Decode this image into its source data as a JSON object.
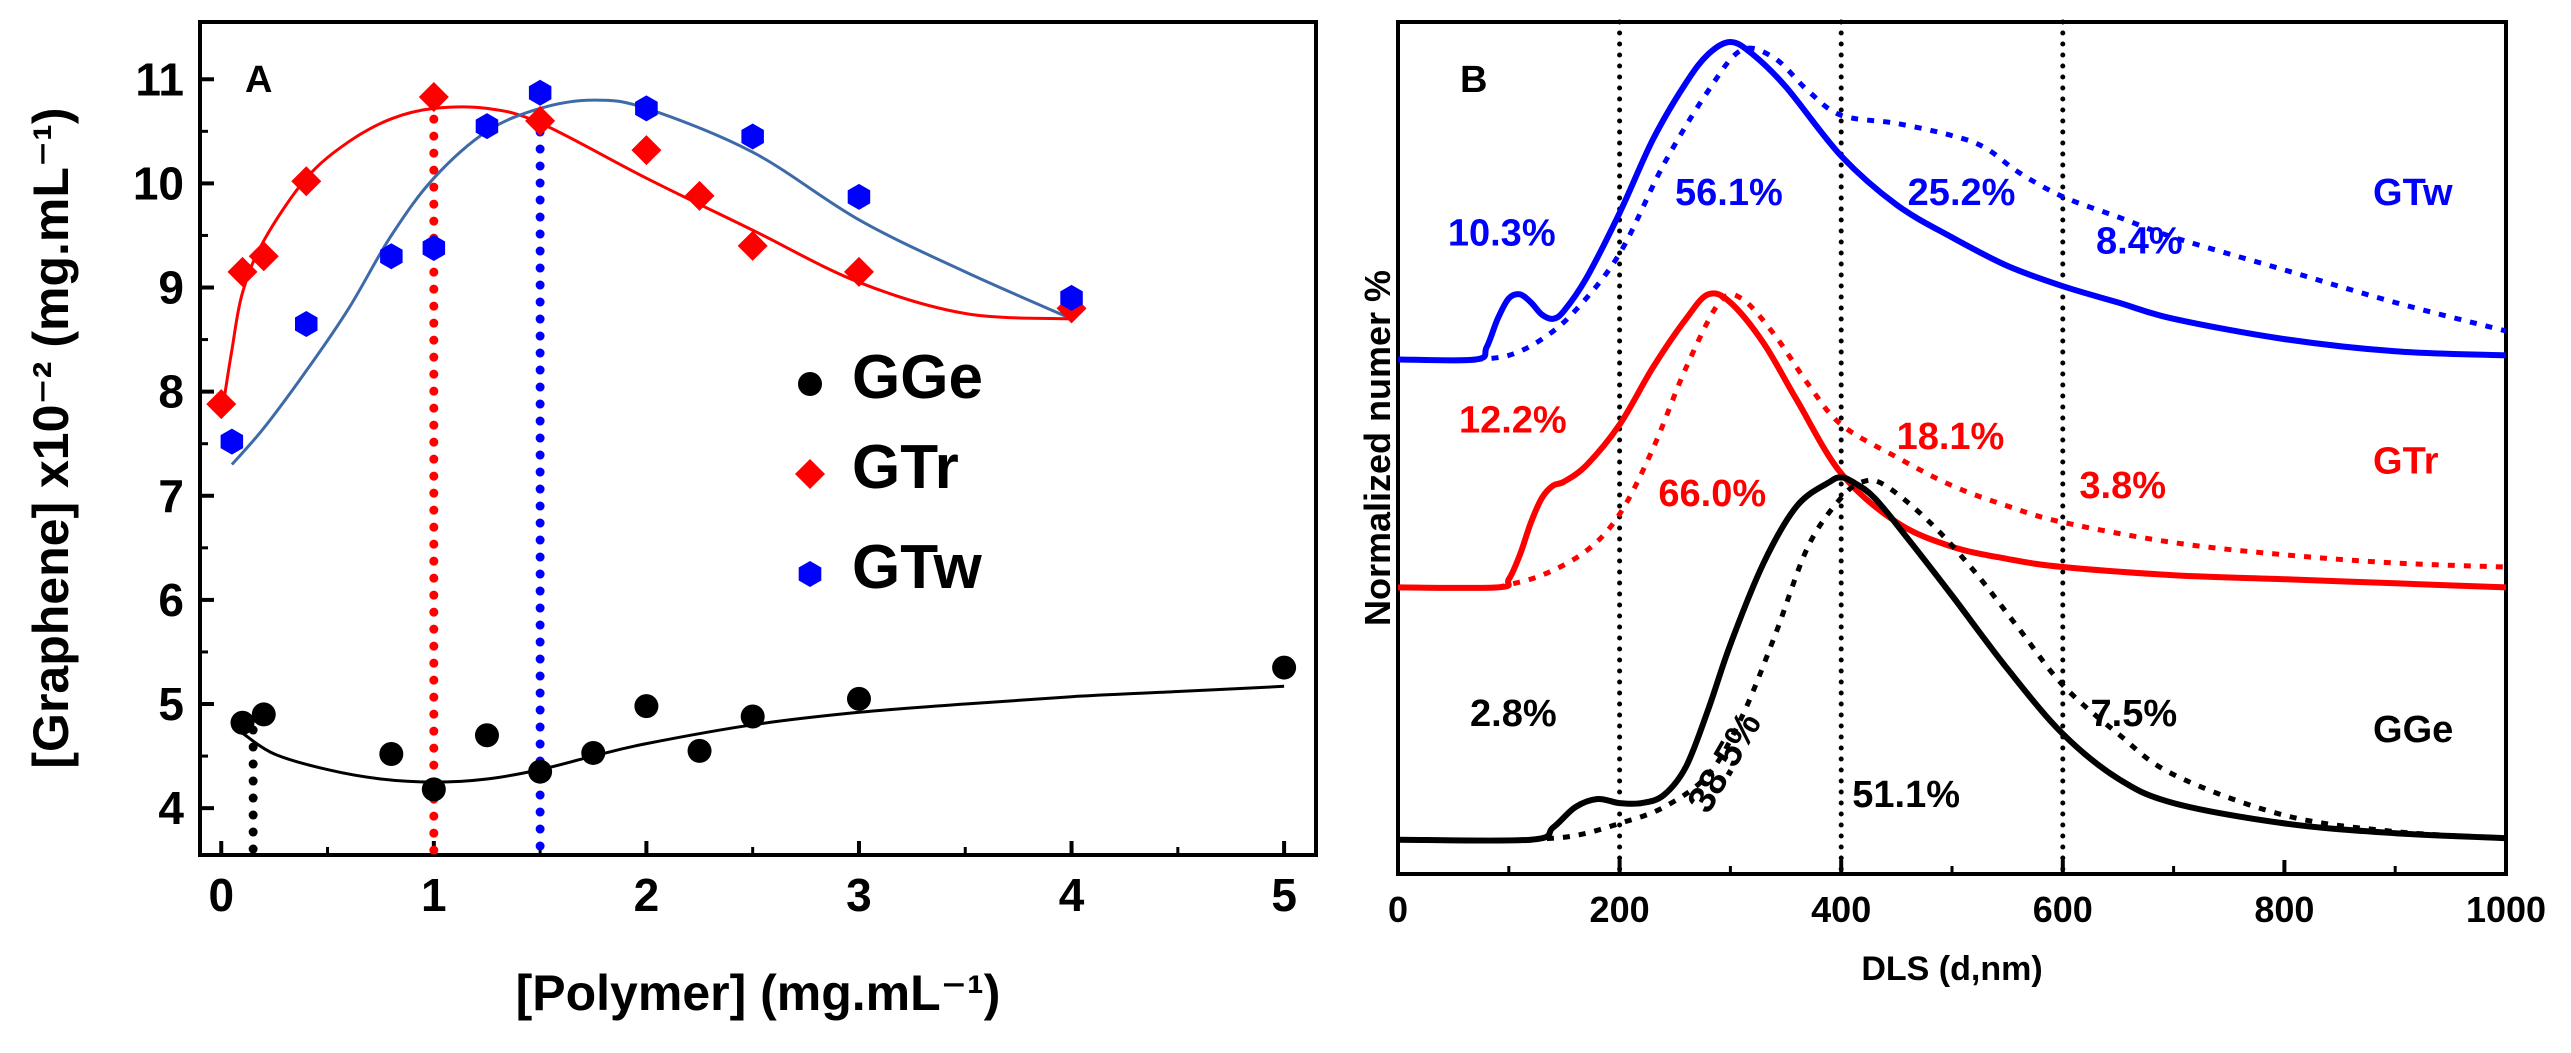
{
  "chart_data": [
    {
      "panel": "A",
      "type": "scatter",
      "xlabel": "[Polymer] (mg.mL⁻¹)",
      "ylabel": "[Graphene] x10⁻² (mg.mL⁻¹)",
      "xlim": [
        -0.1,
        5.15
      ],
      "ylim": [
        3.55,
        11.55
      ],
      "xticks": [
        "0",
        "1",
        "2",
        "3",
        "4",
        "5"
      ],
      "yticks": [
        "4",
        "5",
        "6",
        "7",
        "8",
        "9",
        "10",
        "11"
      ],
      "legend": [
        "GGe",
        "GTr",
        "GTw"
      ],
      "legend_position": "center-right",
      "series": [
        {
          "name": "GGe",
          "color": "#000000",
          "marker": "circle",
          "x": [
            0.1,
            0.2,
            0.8,
            1.0,
            1.25,
            1.5,
            1.75,
            2.0,
            2.25,
            2.5,
            3.0,
            5.0
          ],
          "y": [
            4.82,
            4.9,
            4.52,
            4.18,
            4.7,
            4.35,
            4.53,
            4.98,
            4.55,
            4.88,
            5.05,
            5.35
          ],
          "fit_x": [
            0.1,
            0.25,
            0.5,
            0.75,
            1.0,
            1.25,
            1.5,
            1.75,
            2.0,
            2.5,
            3.0,
            3.5,
            4.0,
            4.5,
            5.0
          ],
          "fit_y": [
            4.72,
            4.52,
            4.37,
            4.28,
            4.25,
            4.28,
            4.37,
            4.5,
            4.62,
            4.8,
            4.92,
            5.0,
            5.07,
            5.12,
            5.17
          ],
          "drop_x": 0.15,
          "drop_y_top": 4.75
        },
        {
          "name": "GTr",
          "color": "#ff0000",
          "marker": "diamond",
          "x": [
            0.0,
            0.1,
            0.2,
            0.4,
            1.0,
            1.5,
            2.0,
            2.25,
            2.5,
            3.0,
            4.0
          ],
          "y": [
            7.88,
            9.15,
            9.3,
            10.02,
            10.83,
            10.6,
            10.32,
            9.88,
            9.4,
            9.15,
            8.8
          ],
          "fit_x": [
            0.0,
            0.05,
            0.1,
            0.2,
            0.4,
            0.6,
            0.8,
            1.0,
            1.25,
            1.5,
            2.0,
            2.5,
            3.0,
            3.5,
            4.0
          ],
          "fit_y": [
            7.75,
            8.4,
            8.95,
            9.45,
            10.05,
            10.4,
            10.62,
            10.72,
            10.72,
            10.58,
            10.05,
            9.55,
            9.05,
            8.75,
            8.7
          ],
          "drop_x": 1.0,
          "drop_y_top": 10.78
        },
        {
          "name": "GTw",
          "color": "#0000ff",
          "marker": "hexagon",
          "x": [
            0.05,
            0.4,
            0.8,
            1.0,
            1.25,
            1.5,
            2.0,
            2.5,
            3.0,
            4.0
          ],
          "y": [
            7.52,
            8.65,
            9.3,
            9.38,
            10.55,
            10.87,
            10.72,
            10.45,
            9.87,
            8.9
          ],
          "fit_x": [
            0.05,
            0.2,
            0.4,
            0.6,
            0.8,
            1.0,
            1.25,
            1.5,
            1.75,
            2.0,
            2.5,
            3.0,
            3.5,
            4.0
          ],
          "fit_y": [
            7.3,
            7.65,
            8.2,
            8.8,
            9.5,
            10.05,
            10.5,
            10.72,
            10.8,
            10.72,
            10.3,
            9.65,
            9.15,
            8.7
          ],
          "drop_x": 1.5,
          "drop_y_top": 10.82
        }
      ]
    },
    {
      "panel": "B",
      "type": "line",
      "xlabel": "DLS (d,nm)",
      "ylabel": "Normalized numer %",
      "xlim": [
        0,
        1000
      ],
      "ylim": [
        0,
        1
      ],
      "xticks": [
        "0",
        "200",
        "400",
        "600",
        "800",
        "1000"
      ],
      "vlines": [
        200,
        400,
        600
      ],
      "series": [
        {
          "name": "GTw",
          "color": "#0000ff",
          "style": "solid",
          "x": [
            0,
            70,
            80,
            90,
            100,
            110,
            120,
            130,
            140,
            150,
            170,
            200,
            230,
            260,
            280,
            300,
            320,
            350,
            400,
            450,
            500,
            550,
            600,
            650,
            700,
            800,
            900,
            1000
          ],
          "y": [
            0.61,
            0.61,
            0.625,
            0.66,
            0.685,
            0.69,
            0.68,
            0.665,
            0.66,
            0.67,
            0.71,
            0.79,
            0.88,
            0.95,
            0.985,
            1.0,
            0.985,
            0.945,
            0.86,
            0.8,
            0.76,
            0.725,
            0.7,
            0.68,
            0.66,
            0.635,
            0.62,
            0.615
          ]
        },
        {
          "name": "GTw dashed",
          "color": "#0000ff",
          "style": "dotted",
          "x": [
            70,
            100,
            130,
            160,
            200,
            240,
            280,
            310,
            340,
            370,
            400,
            450,
            500,
            530,
            560,
            600,
            650,
            700,
            800,
            900,
            1000
          ],
          "y": [
            0.61,
            0.615,
            0.635,
            0.67,
            0.74,
            0.85,
            0.94,
            0.99,
            0.98,
            0.94,
            0.91,
            0.9,
            0.885,
            0.87,
            0.84,
            0.81,
            0.785,
            0.76,
            0.72,
            0.68,
            0.645
          ]
        },
        {
          "name": "GTr",
          "color": "#ff0000",
          "style": "solid",
          "x": [
            0,
            90,
            100,
            110,
            120,
            130,
            140,
            150,
            170,
            200,
            230,
            260,
            280,
            300,
            330,
            360,
            400,
            450,
            500,
            550,
            600,
            700,
            800,
            900,
            1000
          ],
          "y": [
            0.33,
            0.33,
            0.34,
            0.37,
            0.41,
            0.44,
            0.455,
            0.46,
            0.48,
            0.53,
            0.6,
            0.66,
            0.69,
            0.68,
            0.63,
            0.56,
            0.47,
            0.41,
            0.38,
            0.365,
            0.355,
            0.345,
            0.34,
            0.335,
            0.33
          ]
        },
        {
          "name": "GTr dashed",
          "color": "#ff0000",
          "style": "dotted",
          "x": [
            90,
            130,
            170,
            200,
            230,
            260,
            290,
            310,
            340,
            370,
            400,
            450,
            500,
            550,
            600,
            700,
            800,
            900,
            1000
          ],
          "y": [
            0.33,
            0.345,
            0.375,
            0.42,
            0.5,
            0.6,
            0.68,
            0.685,
            0.64,
            0.58,
            0.53,
            0.49,
            0.455,
            0.43,
            0.41,
            0.385,
            0.37,
            0.36,
            0.355
          ]
        },
        {
          "name": "GGe",
          "color": "#000000",
          "style": "solid",
          "x": [
            0,
            120,
            140,
            160,
            180,
            200,
            220,
            240,
            260,
            280,
            300,
            330,
            360,
            390,
            400,
            410,
            430,
            460,
            500,
            550,
            600,
            650,
            700,
            800,
            900,
            1000
          ],
          "y": [
            0.02,
            0.02,
            0.035,
            0.06,
            0.07,
            0.065,
            0.065,
            0.075,
            0.11,
            0.18,
            0.26,
            0.36,
            0.43,
            0.46,
            0.465,
            0.46,
            0.44,
            0.39,
            0.32,
            0.23,
            0.15,
            0.095,
            0.065,
            0.04,
            0.028,
            0.022
          ]
        },
        {
          "name": "GGe dashed",
          "color": "#000000",
          "style": "dotted",
          "x": [
            120,
            160,
            200,
            240,
            280,
            310,
            340,
            370,
            400,
            420,
            440,
            480,
            520,
            560,
            600,
            650,
            700,
            800,
            900,
            1000
          ],
          "y": [
            0.02,
            0.025,
            0.04,
            0.06,
            0.1,
            0.17,
            0.27,
            0.38,
            0.44,
            0.46,
            0.455,
            0.41,
            0.35,
            0.28,
            0.21,
            0.15,
            0.1,
            0.05,
            0.03,
            0.022
          ]
        }
      ],
      "annotations": [
        {
          "text": "10.3%",
          "color": "#0000ff",
          "x": 45,
          "y": 0.75
        },
        {
          "text": "56.1%",
          "color": "#0000ff",
          "x": 250,
          "y": 0.8
        },
        {
          "text": "25.2%",
          "color": "#0000ff",
          "x": 460,
          "y": 0.8
        },
        {
          "text": "8.4%",
          "color": "#0000ff",
          "x": 630,
          "y": 0.74
        },
        {
          "text": "GTw",
          "color": "#0000ff",
          "x": 880,
          "y": 0.8
        },
        {
          "text": "12.2%",
          "color": "#ff0000",
          "x": 55,
          "y": 0.52
        },
        {
          "text": "66.0%",
          "color": "#ff0000",
          "x": 235,
          "y": 0.43
        },
        {
          "text": "18.1%",
          "color": "#ff0000",
          "x": 450,
          "y": 0.5
        },
        {
          "text": "3.8%",
          "color": "#ff0000",
          "x": 615,
          "y": 0.44
        },
        {
          "text": "GTr",
          "color": "#ff0000",
          "x": 880,
          "y": 0.47
        },
        {
          "text": "2.8%",
          "color": "#000000",
          "x": 65,
          "y": 0.16
        },
        {
          "text": "38.5%",
          "color": "#000000",
          "x": 280,
          "y": 0.05,
          "rotate": -60
        },
        {
          "text": "51.1%",
          "color": "#000000",
          "x": 410,
          "y": 0.06
        },
        {
          "text": "7.5%",
          "color": "#000000",
          "x": 625,
          "y": 0.16
        },
        {
          "text": "GGe",
          "color": "#000000",
          "x": 880,
          "y": 0.14
        }
      ]
    }
  ],
  "panel_labels": {
    "a": "A",
    "b": "B"
  }
}
